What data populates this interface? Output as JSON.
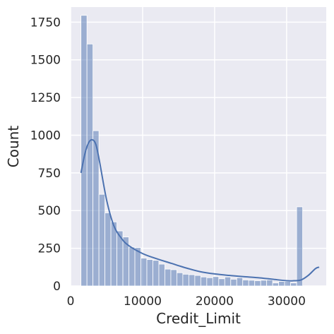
{
  "chart_data": {
    "type": "bar",
    "subtype": "histogram-with-kde",
    "title": "",
    "xlabel": "Credit_Limit",
    "ylabel": "Count",
    "xlim": [
      0,
      35500
    ],
    "ylim": [
      0,
      1850
    ],
    "x_ticks": [
      0,
      10000,
      20000,
      30000
    ],
    "x_tick_labels": [
      "0",
      "10000",
      "20000",
      "30000"
    ],
    "y_ticks": [
      0,
      250,
      500,
      750,
      1000,
      1250,
      1500,
      1750
    ],
    "y_tick_labels": [
      "0",
      "250",
      "500",
      "750",
      "1000",
      "1250",
      "1500",
      "1750"
    ],
    "grid": true,
    "colors": {
      "background": "#eaeaf2",
      "grid": "#ffffff",
      "bar_fill": "#4c72b0",
      "bar_fill_opacity": 0.5,
      "bar_edge": "#ffffff",
      "kde_line": "#4c72b0",
      "text": "#262626"
    },
    "bins": {
      "start": 1438,
      "width": 832,
      "counts": [
        1795,
        1605,
        1030,
        608,
        485,
        425,
        365,
        325,
        258,
        255,
        185,
        175,
        170,
        145,
        112,
        108,
        88,
        78,
        75,
        70,
        60,
        55,
        62,
        48,
        60,
        45,
        55,
        40,
        38,
        35,
        38,
        40,
        20,
        30,
        30,
        20,
        525
      ]
    },
    "kde": {
      "x": [
        1438,
        2000,
        2500,
        3000,
        3500,
        4000,
        5000,
        6000,
        7000,
        8000,
        10000,
        12000,
        14000,
        16000,
        18000,
        20000,
        22000,
        24000,
        26000,
        28000,
        30000,
        31000,
        32000,
        33000,
        34000,
        34516
      ],
      "y": [
        750,
        880,
        950,
        970,
        940,
        830,
        570,
        400,
        320,
        270,
        215,
        180,
        150,
        120,
        95,
        80,
        70,
        62,
        55,
        45,
        35,
        35,
        40,
        70,
        115,
        125
      ]
    }
  }
}
